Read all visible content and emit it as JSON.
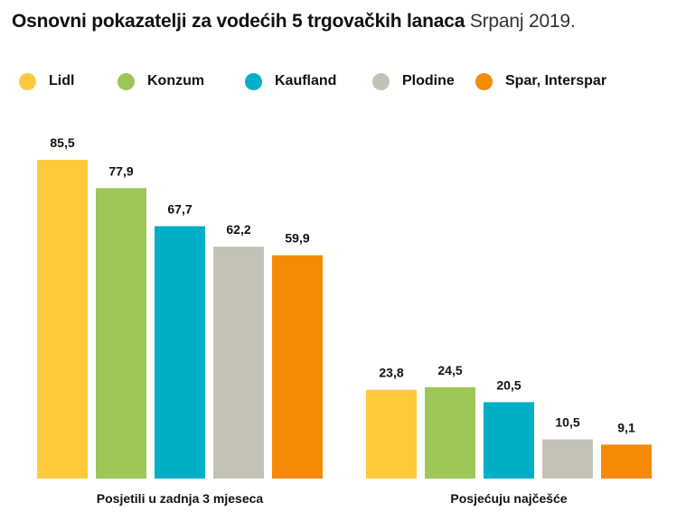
{
  "title": "Osnovni pokazatelji za vodećih 5 trgovačkih lanaca",
  "subtitle": "Srpanj 2019.",
  "chart_data": {
    "type": "bar",
    "categories": [
      "Posjetili u zadnja 3 mjeseca",
      "Posjećuju najčešće"
    ],
    "series": [
      {
        "name": "Lidl",
        "color": "#FFC93C",
        "values": [
          85.5,
          23.8
        ],
        "labels": [
          "85,5",
          "23,8"
        ]
      },
      {
        "name": "Konzum",
        "color": "#9DC656",
        "values": [
          77.9,
          24.5
        ],
        "labels": [
          "77,9",
          "24,5"
        ]
      },
      {
        "name": "Kaufland",
        "color": "#00AFC6",
        "values": [
          67.7,
          20.5
        ],
        "labels": [
          "67,7",
          "20,5"
        ]
      },
      {
        "name": "Plodine",
        "color": "#C4C2B6",
        "values": [
          62.2,
          10.5
        ],
        "labels": [
          "62,2",
          "10,5"
        ]
      },
      {
        "name": "Spar, Interspar",
        "color": "#F58A07",
        "values": [
          59.9,
          9.1
        ],
        "labels": [
          "59,9",
          "9,1"
        ]
      }
    ],
    "legend_position": "top",
    "grid": false,
    "ylim": [
      0,
      85.5
    ]
  }
}
